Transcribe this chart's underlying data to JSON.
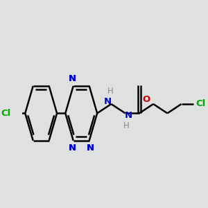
{
  "background_color": "#dfe0e0",
  "bond_color": "#000000",
  "bond_width": 1.8,
  "figsize": [
    3.0,
    3.0
  ],
  "dpi": 100,
  "xlim": [
    -1.0,
    8.5
  ],
  "ylim": [
    -2.5,
    3.0
  ],
  "bg_hex": "#dfe0e0"
}
